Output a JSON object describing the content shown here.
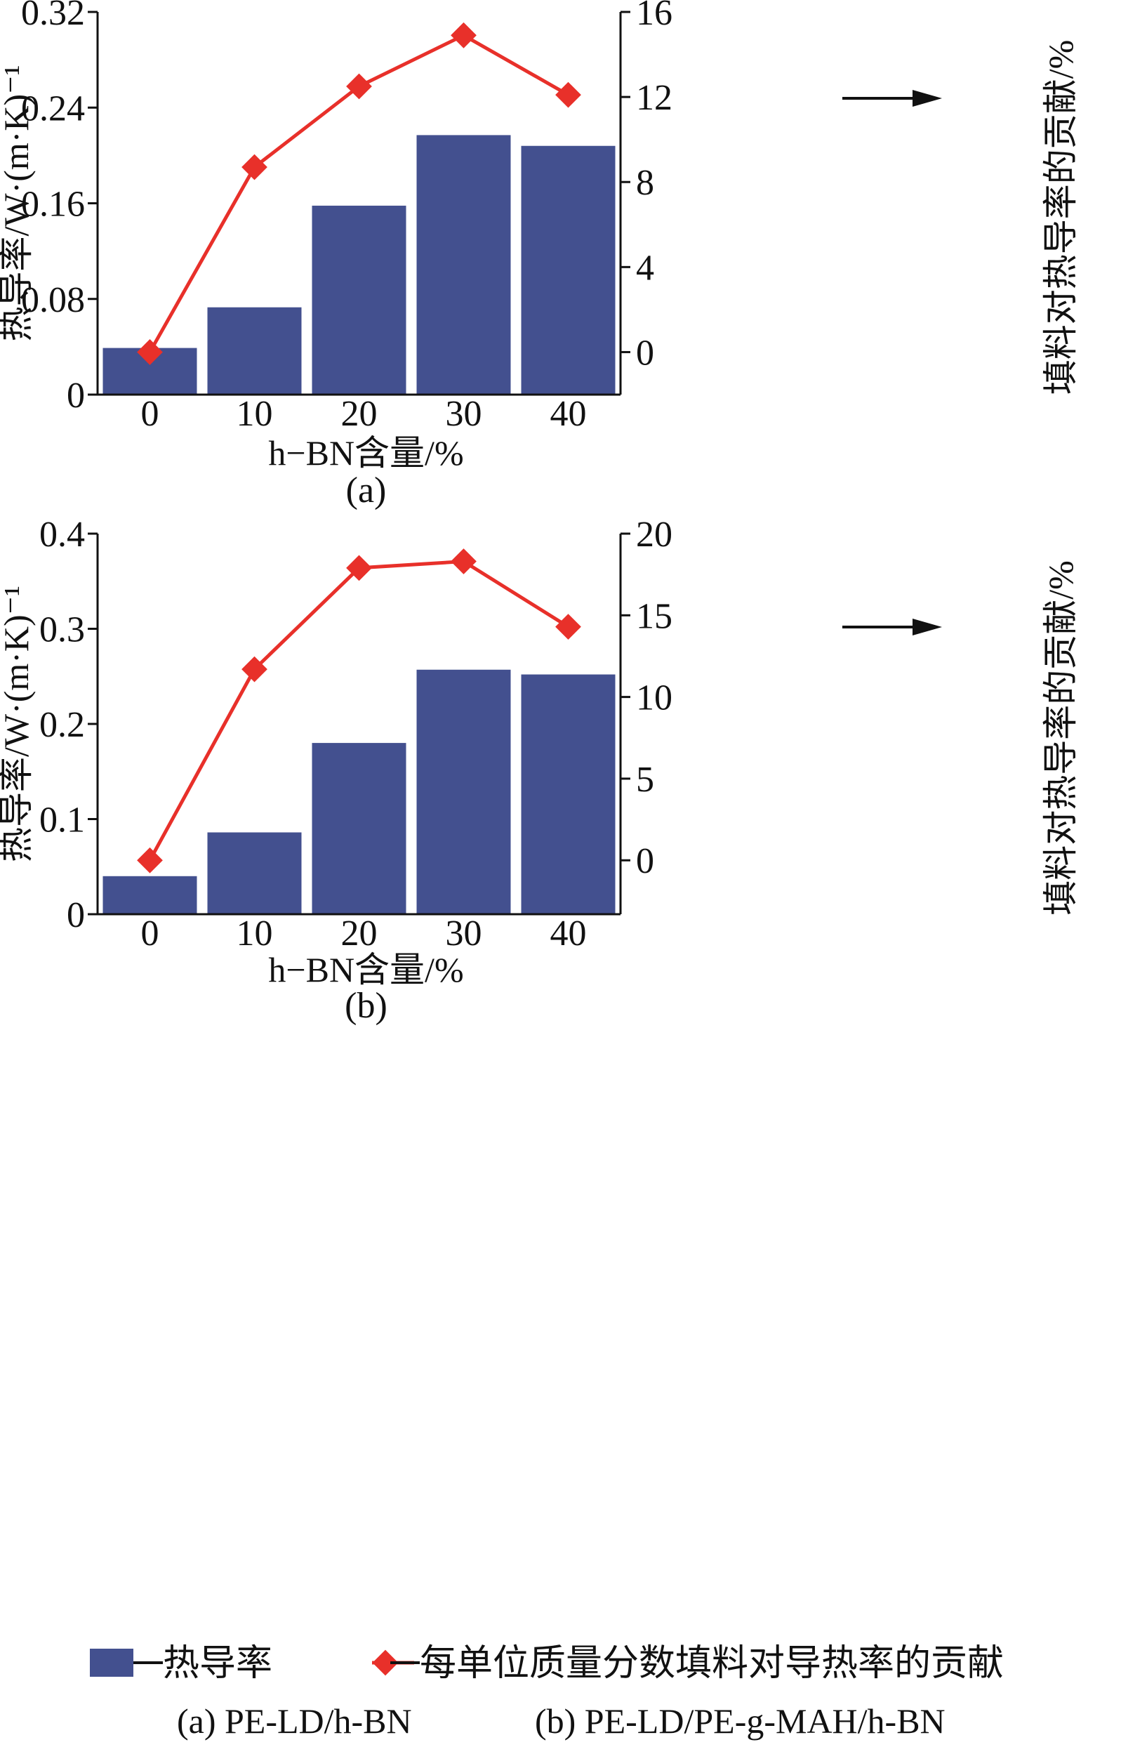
{
  "chart_data": [
    {
      "type": "bar+line",
      "panel_label": "(a)",
      "categories": [
        "0",
        "10",
        "20",
        "30",
        "40"
      ],
      "xlabel": "h−BN含量/%",
      "ylabel_left": "热导率/W·(m·K)⁻¹",
      "ylabel_right": "填料对热导率的贡献/%",
      "y_left_ticks": [
        "0",
        "0.08",
        "0.16",
        "0.24",
        "0.32"
      ],
      "y_right_ticks": [
        "0",
        "4",
        "8",
        "12",
        "16"
      ],
      "ylim_left": [
        0,
        0.32
      ],
      "ylim_right": [
        -2,
        16
      ],
      "series": [
        {
          "name": "热导率",
          "kind": "bar",
          "axis": "left",
          "values": [
            0.039,
            0.073,
            0.158,
            0.217,
            0.208
          ]
        },
        {
          "name": "每单位质量分数填料对导热率的贡献",
          "kind": "line",
          "axis": "right",
          "values": [
            0,
            8.7,
            12.5,
            14.9,
            12.1
          ]
        }
      ],
      "annotation": "arrow pointing right near line series",
      "bar_color": "#43508f",
      "line_color": "#e8302a"
    },
    {
      "type": "bar+line",
      "panel_label": "(b)",
      "categories": [
        "0",
        "10",
        "20",
        "30",
        "40"
      ],
      "xlabel": "h−BN含量/%",
      "ylabel_left": "热导率/W·(m·K)⁻¹",
      "ylabel_right": "填料对热导率的贡献/%",
      "y_left_ticks": [
        "0",
        "0.1",
        "0.2",
        "0.3",
        "0.4"
      ],
      "y_right_ticks": [
        "0",
        "5",
        "10",
        "15",
        "20"
      ],
      "ylim_left": [
        0,
        0.4
      ],
      "ylim_right": [
        -3.3,
        20
      ],
      "series": [
        {
          "name": "热导率",
          "kind": "bar",
          "axis": "left",
          "values": [
            0.04,
            0.086,
            0.18,
            0.257,
            0.252
          ]
        },
        {
          "name": "每单位质量分数填料对导热率的贡献",
          "kind": "line",
          "axis": "right",
          "values": [
            0,
            11.7,
            17.9,
            18.3,
            14.3
          ]
        }
      ],
      "annotation": "arrow pointing right near line series",
      "bar_color": "#43508f",
      "line_color": "#e8302a"
    }
  ],
  "legend": {
    "bar_label": "热导率",
    "line_label": "每单位质量分数填料对导热率的贡献",
    "placement": "bottom"
  },
  "caption": {
    "a": "(a) PE-LD/h-BN",
    "b": "(b) PE-LD/PE-g-MAH/h-BN"
  }
}
